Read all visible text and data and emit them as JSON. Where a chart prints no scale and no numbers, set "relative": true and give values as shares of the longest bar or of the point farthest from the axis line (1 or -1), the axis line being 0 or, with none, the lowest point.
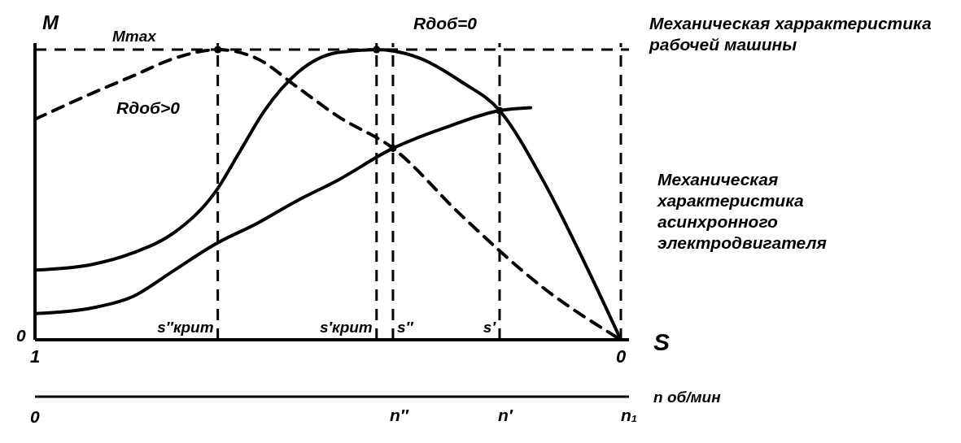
{
  "chart_data": {
    "type": "line",
    "relative": true,
    "ylabel": "M",
    "xlabel": "S",
    "x2label": "n об/мин",
    "xlim": [
      1,
      0
    ],
    "xticks": [
      1,
      0
    ],
    "series": [
      {
        "color": "#000000",
        "line_style": "solid",
        "x": [
          1.0,
          0.902,
          0.832,
          0.762,
          0.692,
          0.65,
          0.608,
          0.552,
          0.483,
          0.417,
          0.343,
          0.273,
          0.207,
          0.133,
          0.063,
          0
        ],
        "values": [
          0.24,
          0.26,
          0.3,
          0.37,
          0.51,
          0.65,
          0.79,
          0.92,
          0.99,
          1.0,
          0.97,
          0.89,
          0.79,
          0.55,
          0.27,
          0
        ]
      },
      {
        "color": "#000000",
        "line_style": "dashed",
        "x": [
          1.0,
          0.902,
          0.832,
          0.762,
          0.688,
          0.622,
          0.552,
          0.483,
          0.389,
          0.273,
          0.133,
          0
        ],
        "values": [
          0.76,
          0.85,
          0.91,
          0.97,
          1.0,
          0.97,
          0.87,
          0.77,
          0.66,
          0.43,
          0.18,
          0
        ]
      },
      {
        "color": "#000000",
        "line_style": "solid",
        "x": [
          1.0,
          0.902,
          0.832,
          0.762,
          0.692,
          0.622,
          0.552,
          0.483,
          0.389,
          0.301,
          0.207,
          0.154
        ],
        "values": [
          0.09,
          0.11,
          0.15,
          0.24,
          0.33,
          0.4,
          0.48,
          0.55,
          0.66,
          0.73,
          0.79,
          0.8
        ]
      },
      {
        "type": "scatter",
        "color": "#000000",
        "marker": "circle",
        "x": [
          0.688,
          0.417,
          0.389,
          0.207
        ],
        "values": [
          1,
          1,
          0.66,
          0.79
        ]
      }
    ],
    "marker": "none",
    "ref_lines": [
      {
        "axis": "y",
        "value": 1,
        "label": "Mmax",
        "line_style": "dashed",
        "color": "#000000"
      },
      {
        "axis": "x",
        "value": 0.688,
        "label": "s″крит",
        "line_style": "dashed",
        "color": "#000000"
      },
      {
        "axis": "x",
        "value": 0.417,
        "label": "s′крит",
        "line_style": "dashed",
        "color": "#000000"
      },
      {
        "axis": "x",
        "value": 0.389,
        "label": "s″",
        "line_style": "dashed",
        "color": "#000000"
      },
      {
        "axis": "x",
        "value": 0.207,
        "label": "s′",
        "line_style": "dashed",
        "color": "#000000"
      },
      {
        "axis": "x",
        "value": 0,
        "label": null,
        "line_style": "dashed",
        "color": "#000000"
      }
    ],
    "annotations": [
      "Rдоб=0",
      "Rдоб>0",
      "Механическая харрактеристика рабочей машины",
      "Механическая характеристика асинхронного электродвигателя",
      "0",
      "0",
      "n″",
      "n′",
      "n₁"
    ]
  }
}
